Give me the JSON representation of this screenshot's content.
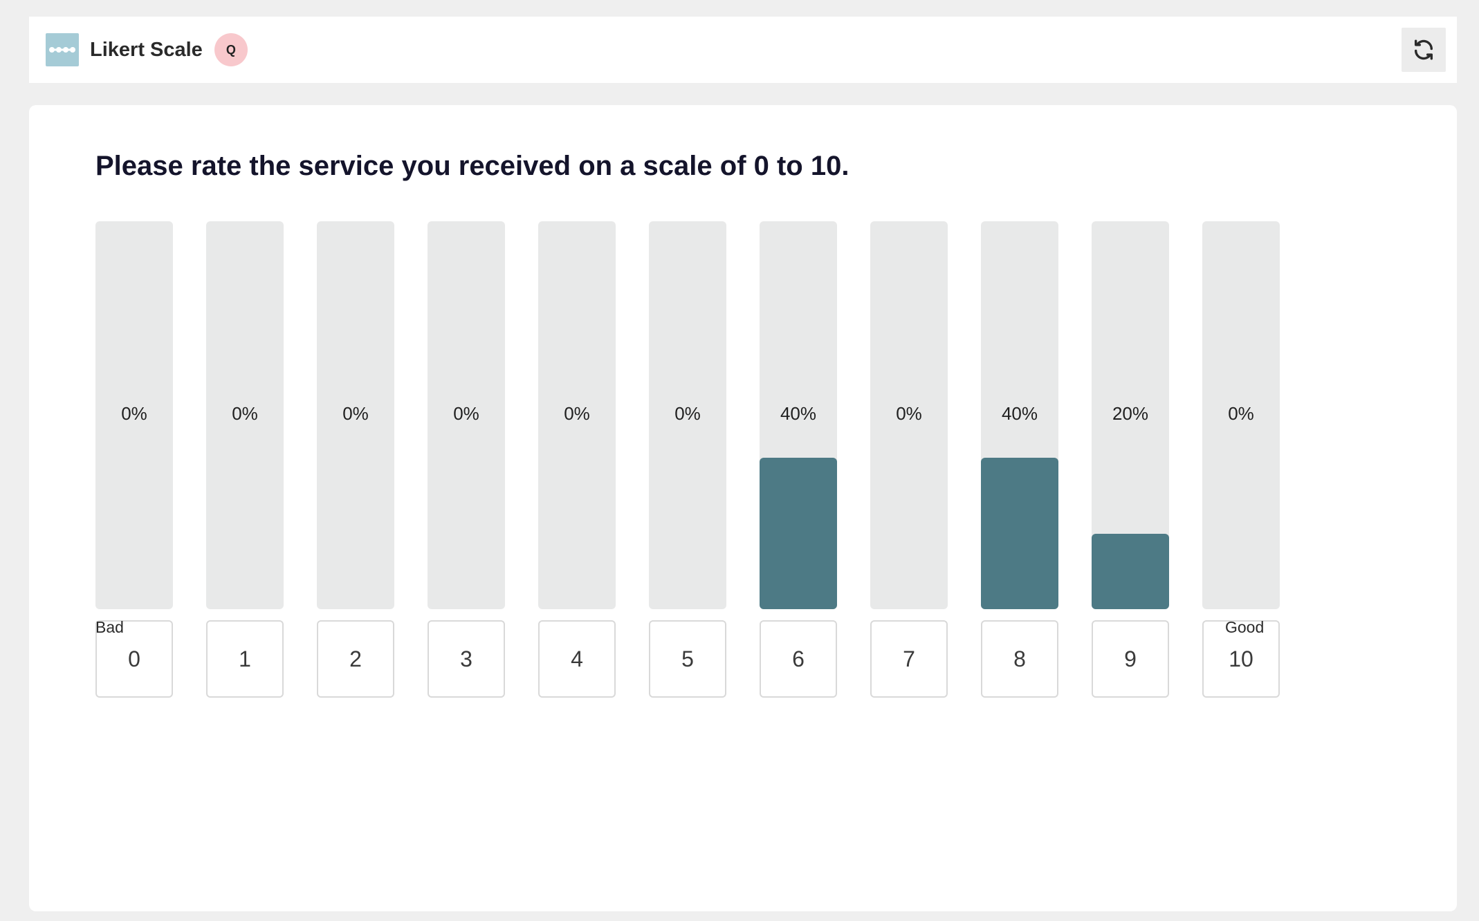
{
  "header": {
    "title": "Likert Scale",
    "badge": "Q",
    "icons": {
      "app": "likert-scale-icon",
      "refresh": "refresh-icon"
    }
  },
  "question": "Please rate the service you received on a scale of 0 to 10.",
  "scale": {
    "low_label": "Bad",
    "high_label": "Good",
    "options": [
      {
        "label": "0",
        "percent_label": "0%",
        "value": 0
      },
      {
        "label": "1",
        "percent_label": "0%",
        "value": 0
      },
      {
        "label": "2",
        "percent_label": "0%",
        "value": 0
      },
      {
        "label": "3",
        "percent_label": "0%",
        "value": 0
      },
      {
        "label": "4",
        "percent_label": "0%",
        "value": 0
      },
      {
        "label": "5",
        "percent_label": "0%",
        "value": 0
      },
      {
        "label": "6",
        "percent_label": "40%",
        "value": 40
      },
      {
        "label": "7",
        "percent_label": "0%",
        "value": 0
      },
      {
        "label": "8",
        "percent_label": "40%",
        "value": 40
      },
      {
        "label": "9",
        "percent_label": "20%",
        "value": 20
      },
      {
        "label": "10",
        "percent_label": "0%",
        "value": 0
      }
    ]
  },
  "colors": {
    "bar_fill": "#4d7a85",
    "bar_track": "#e8e9e9",
    "badge_bg": "#f8c8cc",
    "app_icon_bg": "#a5cbd6"
  }
}
